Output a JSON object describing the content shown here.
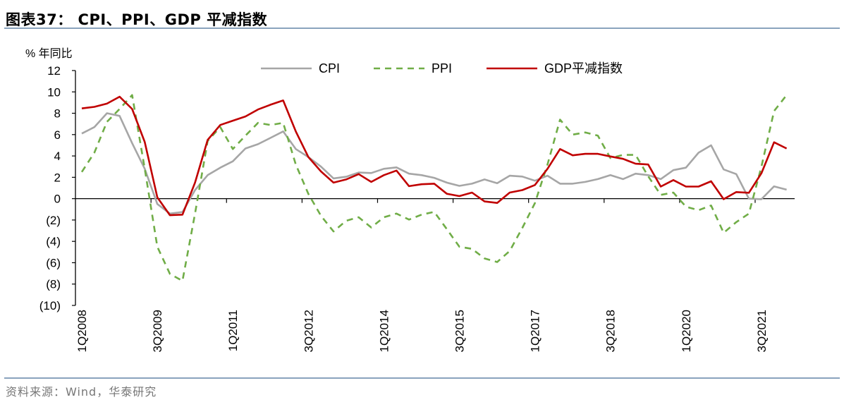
{
  "title": "图表37：  CPI、PPI、GDP 平减指数",
  "source": "资料来源：Wind，华泰研究",
  "chart_data": {
    "type": "line",
    "ylabel": "% 年同比",
    "ylim": [
      -10,
      12
    ],
    "yticks": [
      12,
      10,
      8,
      6,
      4,
      2,
      0,
      -2,
      -4,
      -6,
      -8,
      -10
    ],
    "ytick_labels": [
      "12",
      "10",
      "8",
      "6",
      "4",
      "2",
      "0",
      "(2)",
      "(4)",
      "(6)",
      "(8)",
      "(10)"
    ],
    "xtick_labels": [
      "1Q2008",
      "3Q2009",
      "1Q2011",
      "3Q2012",
      "1Q2014",
      "3Q2015",
      "1Q2017",
      "3Q2018",
      "1Q2020",
      "3Q2021"
    ],
    "x_start": "1Q2008",
    "x_end": "1Q2022",
    "legend_position": "top",
    "grid": false,
    "series": [
      {
        "name": "CPI",
        "color": "#a6a6a6",
        "style": "solid",
        "values": [
          6.1,
          6.7,
          8.0,
          7.75,
          5.2,
          2.8,
          -0.5,
          -1.4,
          -1.25,
          0.8,
          2.2,
          2.9,
          3.5,
          4.7,
          5.1,
          5.7,
          6.3,
          4.65,
          3.9,
          3.0,
          1.9,
          2.05,
          2.45,
          2.4,
          2.8,
          2.93,
          2.34,
          2.2,
          1.95,
          1.5,
          1.2,
          1.4,
          1.8,
          1.45,
          2.15,
          2.07,
          1.68,
          2.15,
          1.4,
          1.4,
          1.57,
          1.83,
          2.2,
          1.83,
          2.34,
          2.2,
          1.83,
          2.67,
          2.9,
          4.3,
          5.0,
          2.74,
          2.3,
          0.0,
          -0.05,
          1.15,
          0.84
        ]
      },
      {
        "name": "PPI",
        "color": "#70ad47",
        "style": "dashed",
        "values": [
          2.5,
          4.3,
          7.2,
          8.4,
          9.7,
          2.8,
          -4.5,
          -7.05,
          -7.7,
          -1.4,
          5.4,
          6.7,
          4.65,
          5.9,
          7.1,
          6.9,
          7.1,
          3.2,
          0.45,
          -1.6,
          -3.07,
          -2.07,
          -1.74,
          -2.7,
          -1.74,
          -1.4,
          -1.96,
          -1.5,
          -1.24,
          -2.85,
          -4.5,
          -4.7,
          -5.6,
          -5.94,
          -4.9,
          -2.74,
          -0.42,
          3.2,
          7.4,
          6.0,
          6.2,
          5.9,
          3.8,
          4.1,
          4.1,
          2.1,
          0.35,
          0.57,
          -0.75,
          -1.08,
          -0.64,
          -3.2,
          -2.2,
          -1.4,
          3.0,
          8.2,
          9.7
        ]
      },
      {
        "name": "GDP平减指数",
        "color": "#c00000",
        "style": "solid",
        "values": [
          8.45,
          8.6,
          8.9,
          9.55,
          8.4,
          5.3,
          0.13,
          -1.55,
          -1.5,
          1.5,
          5.5,
          6.9,
          7.3,
          7.7,
          8.35,
          8.8,
          9.2,
          6.3,
          3.9,
          2.55,
          1.5,
          1.8,
          2.3,
          1.57,
          2.2,
          2.63,
          1.17,
          1.35,
          1.4,
          0.46,
          0.24,
          0.57,
          -0.26,
          -0.4,
          0.57,
          0.8,
          1.28,
          2.8,
          4.65,
          4.06,
          4.2,
          4.2,
          3.95,
          3.73,
          3.27,
          3.2,
          1.13,
          1.74,
          1.13,
          1.13,
          1.63,
          -0.05,
          0.62,
          0.55,
          2.38,
          5.28,
          4.7
        ]
      }
    ]
  }
}
